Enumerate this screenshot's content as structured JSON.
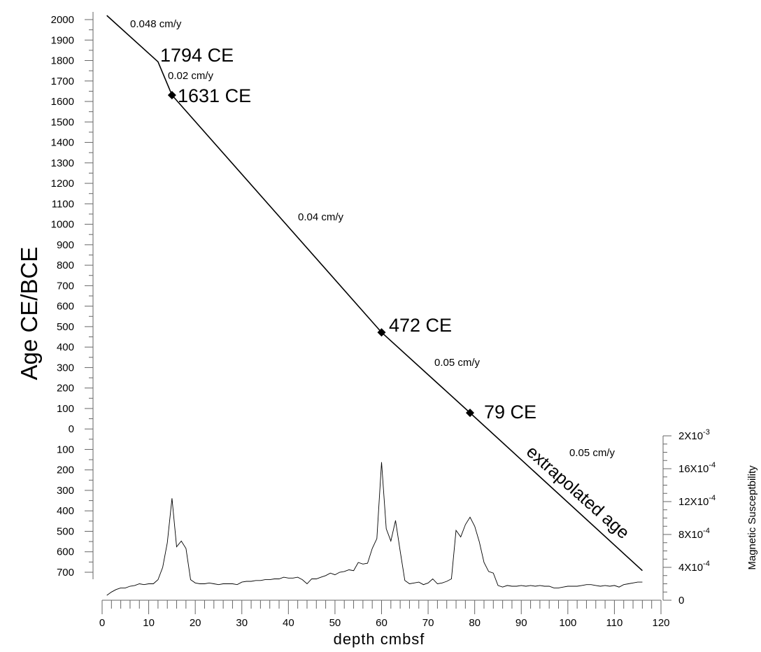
{
  "chart_data": {
    "type": "line",
    "left_axis": {
      "label": "Age CE/BCE",
      "ticks": [
        "2000",
        "1900",
        "1800",
        "1700",
        "1600",
        "1500",
        "1400",
        "1300",
        "1200",
        "1100",
        "1000",
        "900",
        "800",
        "700",
        "600",
        "500",
        "400",
        "300",
        "200",
        "100",
        "0",
        "100",
        "200",
        "300",
        "400",
        "500",
        "600",
        "700"
      ],
      "tick_values": [
        2000,
        1900,
        1800,
        1700,
        1600,
        1500,
        1400,
        1300,
        1200,
        1100,
        1000,
        900,
        800,
        700,
        600,
        500,
        400,
        300,
        200,
        100,
        0,
        -100,
        -200,
        -300,
        -400,
        -500,
        -600,
        -700
      ],
      "range": [
        -700,
        2000
      ]
    },
    "x_axis": {
      "label": "depth cmbsf",
      "ticks": [
        "0",
        "10",
        "20",
        "30",
        "40",
        "50",
        "60",
        "70",
        "80",
        "90",
        "100",
        "110",
        "120"
      ],
      "range": [
        0,
        120
      ]
    },
    "right_axis": {
      "label": "Magnetic Susceptbility",
      "ticks": [
        {
          "value": 0,
          "base": "0",
          "exp": ""
        },
        {
          "value": 0.0004,
          "base": "4X10",
          "exp": "-4"
        },
        {
          "value": 0.0008,
          "base": "8X10",
          "exp": "-4"
        },
        {
          "value": 0.0012,
          "base": "12X10",
          "exp": "-4"
        },
        {
          "value": 0.0016,
          "base": "16X10",
          "exp": "-4"
        },
        {
          "value": 0.002,
          "base": "2X10",
          "exp": "-3"
        }
      ],
      "range": [
        0,
        0.002
      ]
    },
    "age_model": {
      "x": [
        1,
        12,
        15,
        60,
        79,
        116
      ],
      "y": [
        2020,
        1794,
        1631,
        472,
        79,
        -692
      ]
    },
    "dated_points": [
      {
        "x": 15,
        "y": 1631,
        "label": "1631 CE"
      },
      {
        "x": 60,
        "y": 472,
        "label": "472 CE"
      },
      {
        "x": 79,
        "y": 79,
        "label": "79 CE"
      }
    ],
    "breakpoint_label": {
      "x": 12,
      "y": 1794,
      "label": "1794 CE"
    },
    "rate_labels": [
      "0.048 cm/y",
      "0.02 cm/y",
      "0.04 cm/y",
      "0.05 cm/y",
      "0.05 cm/y"
    ],
    "extrapolated_label": "extrapolated age",
    "magnetic_susceptibility": {
      "x": [
        1,
        2,
        3,
        4,
        5,
        6,
        7,
        8,
        9,
        10,
        11,
        12,
        13,
        14,
        15,
        16,
        17,
        18,
        19,
        20,
        21,
        22,
        23,
        24,
        25,
        26,
        27,
        28,
        29,
        30,
        31,
        32,
        33,
        34,
        35,
        36,
        37,
        38,
        39,
        40,
        41,
        42,
        43,
        44,
        45,
        46,
        47,
        48,
        49,
        50,
        51,
        52,
        53,
        54,
        55,
        56,
        57,
        58,
        59,
        60,
        61,
        62,
        63,
        64,
        65,
        66,
        67,
        68,
        69,
        70,
        71,
        72,
        73,
        74,
        75,
        76,
        77,
        78,
        79,
        80,
        81,
        82,
        83,
        84,
        85,
        86,
        87,
        88,
        89,
        90,
        91,
        92,
        93,
        94,
        95,
        96,
        97,
        98,
        99,
        100,
        101,
        102,
        103,
        104,
        105,
        106,
        107,
        108,
        109,
        110,
        111,
        112,
        113,
        114,
        115,
        116
      ],
      "y": [
        6e-05,
        0.0001,
        0.00013,
        0.00015,
        0.00015,
        0.00017,
        0.00018,
        0.0002,
        0.00019,
        0.0002,
        0.0002,
        0.00025,
        0.0004,
        0.0007,
        0.00124,
        0.00065,
        0.00072,
        0.00063,
        0.00025,
        0.00021,
        0.0002,
        0.0002,
        0.00021,
        0.0002,
        0.00019,
        0.0002,
        0.0002,
        0.0002,
        0.00019,
        0.00022,
        0.00023,
        0.00023,
        0.00024,
        0.00024,
        0.00025,
        0.00025,
        0.00026,
        0.00026,
        0.00028,
        0.00027,
        0.00027,
        0.00028,
        0.00025,
        0.0002,
        0.00026,
        0.00026,
        0.00028,
        0.0003,
        0.00033,
        0.00031,
        0.00034,
        0.00035,
        0.00037,
        0.00036,
        0.00046,
        0.00044,
        0.00045,
        0.00063,
        0.00075,
        0.00168,
        0.00087,
        0.00072,
        0.00097,
        0.0006,
        0.00024,
        0.0002,
        0.00021,
        0.00022,
        0.00019,
        0.00021,
        0.00026,
        0.0002,
        0.00021,
        0.00023,
        0.00026,
        0.00085,
        0.00077,
        0.00092,
        0.00101,
        0.0009,
        0.00071,
        0.00046,
        0.00035,
        0.00033,
        0.00018,
        0.00016,
        0.00018,
        0.00017,
        0.00017,
        0.00018,
        0.00017,
        0.00018,
        0.00017,
        0.00018,
        0.00017,
        0.00017,
        0.00015,
        0.00015,
        0.00016,
        0.00017,
        0.00017,
        0.00017,
        0.00018,
        0.00019,
        0.00019,
        0.00018,
        0.00017,
        0.00018,
        0.00017,
        0.00018,
        0.00016,
        0.00019,
        0.0002,
        0.00021,
        0.00022,
        0.00022
      ]
    }
  }
}
